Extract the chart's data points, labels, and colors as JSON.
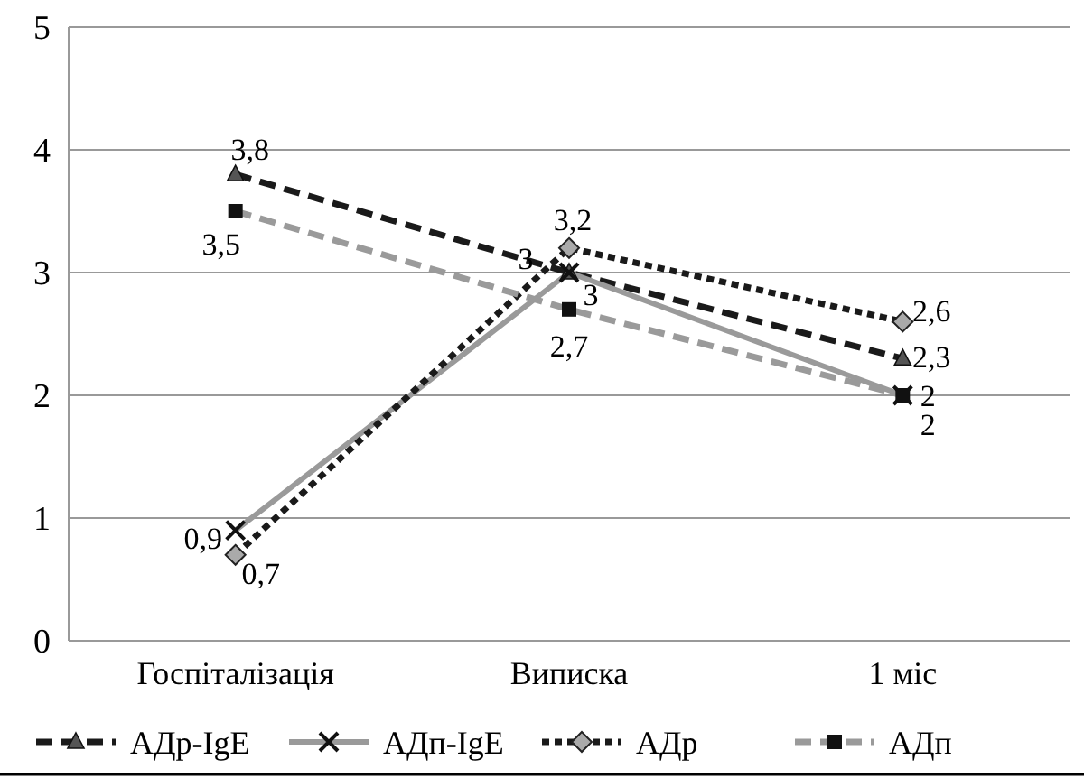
{
  "chart_data": {
    "type": "line",
    "categories": [
      "Госпіталізація",
      "Виписка",
      "1 міс"
    ],
    "series": [
      {
        "name": "АДр-IgE",
        "color": "#1a1a1a",
        "values": [
          3.8,
          3,
          2.3
        ],
        "value_labels": [
          "3,8",
          "3",
          "2,3"
        ],
        "marker": "triangle",
        "line_style": "dashed"
      },
      {
        "name": "АДп-IgE",
        "color": "#9a9a9a",
        "values": [
          0.9,
          3,
          2
        ],
        "value_labels": [
          "0,9",
          "3",
          "2"
        ],
        "marker": "cross",
        "line_style": "solid"
      },
      {
        "name": "АДр",
        "color": "#1a1a1a",
        "values": [
          0.7,
          3.2,
          2.6
        ],
        "value_labels": [
          "0,7",
          "3,2",
          "2,6"
        ],
        "marker": "diamond",
        "line_style": "dotted"
      },
      {
        "name": "АДп",
        "color": "#9a9a9a",
        "values": [
          3.5,
          2.7,
          2
        ],
        "value_labels": [
          "3,5",
          "2,7",
          "2"
        ],
        "marker": "square",
        "line_style": "dashed"
      }
    ],
    "ylim": [
      0,
      5
    ],
    "yticks": [
      0,
      1,
      2,
      3,
      4,
      5
    ],
    "grid": "y",
    "legend": "bottom"
  }
}
